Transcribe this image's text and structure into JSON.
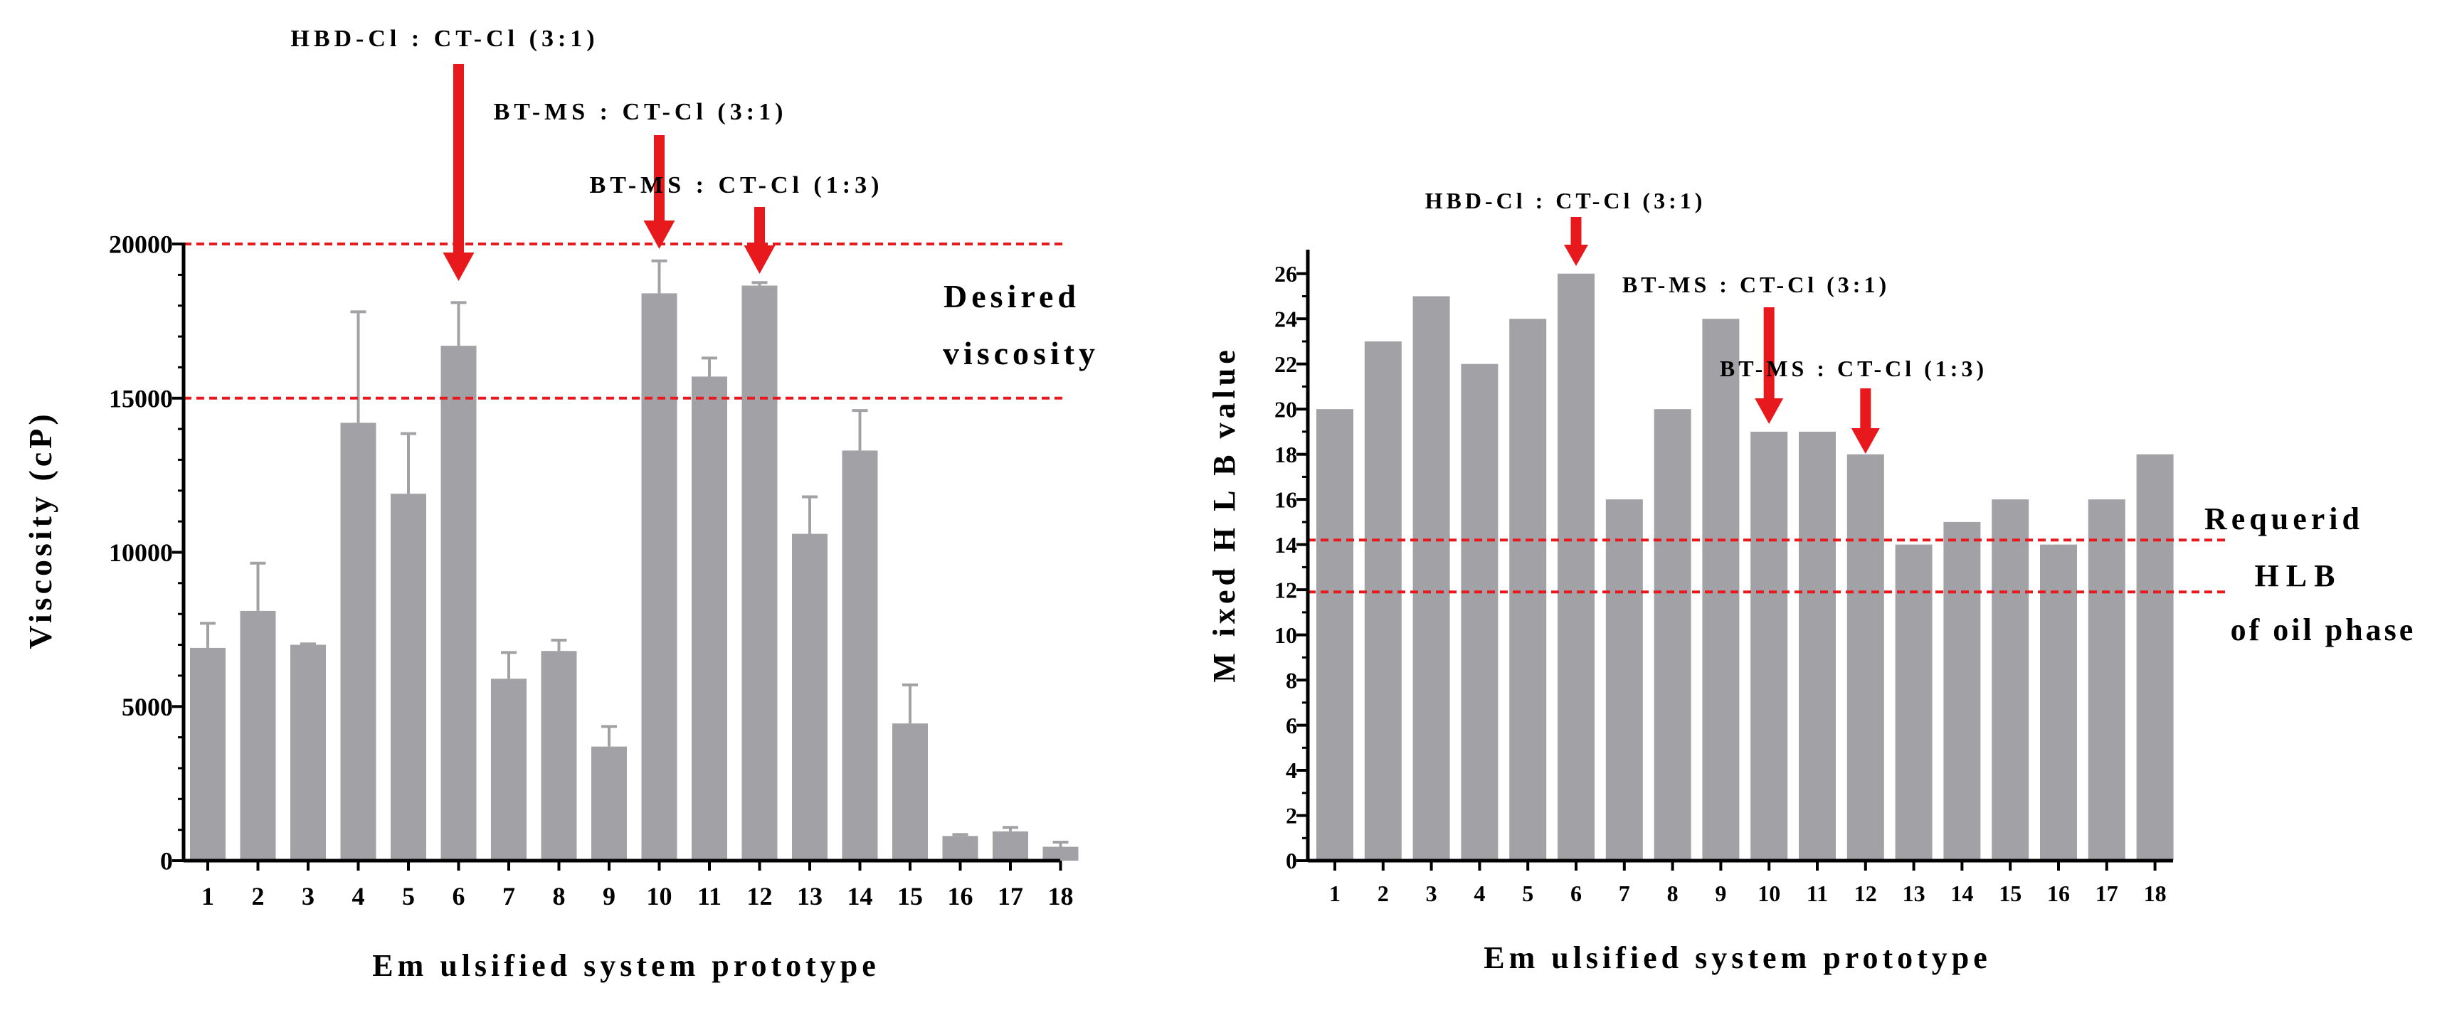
{
  "chart_data": [
    {
      "type": "bar",
      "categories": [
        "1",
        "2",
        "3",
        "4",
        "5",
        "6",
        "7",
        "8",
        "9",
        "10",
        "11",
        "12",
        "13",
        "14",
        "15",
        "16",
        "17",
        "18"
      ],
      "values": [
        6900,
        8100,
        7000,
        14200,
        11900,
        16700,
        5900,
        6800,
        3700,
        18400,
        15700,
        18650,
        10600,
        13300,
        4450,
        800,
        950,
        450
      ],
      "errors": [
        800,
        1550,
        30,
        3600,
        1950,
        1400,
        850,
        350,
        650,
        1050,
        600,
        100,
        1200,
        1300,
        1250,
        50,
        130,
        150
      ],
      "title": "",
      "xlabel": "Em ulsified system prototype",
      "ylabel": "Viscosity (cP)",
      "ylim": [
        0,
        20000
      ],
      "yticks": [
        0,
        5000,
        10000,
        15000,
        20000
      ],
      "ytick_labels": [
        "0",
        "5000",
        "10000",
        "15000",
        "20000"
      ],
      "reference_lines": [
        20000,
        15000
      ],
      "region_label": [
        "Desired",
        "viscosity"
      ],
      "annotations": [
        {
          "text": "HBD-Cl : CT-Cl (3:1)",
          "category": "6"
        },
        {
          "text": "BT-MS : CT-Cl (3:1)",
          "category": "10"
        },
        {
          "text": "BT-MS : CT-Cl (1:3)",
          "category": "12"
        }
      ],
      "colors": {
        "bar": "#a2a2a6",
        "error": "#a2a2a6",
        "reference": "#e8191d",
        "arrow": "#e8191d",
        "axis": "#000000"
      }
    },
    {
      "type": "bar",
      "categories": [
        "1",
        "2",
        "3",
        "4",
        "5",
        "6",
        "7",
        "8",
        "9",
        "10",
        "11",
        "12",
        "13",
        "14",
        "15",
        "16",
        "17",
        "18"
      ],
      "values": [
        20,
        23,
        25,
        22,
        24,
        26,
        16,
        20,
        24,
        19,
        19,
        18,
        14,
        15,
        16,
        14,
        16,
        18
      ],
      "title": "",
      "xlabel": "Em ulsified system prototype",
      "ylabel": "M ixed H L B value",
      "ylim": [
        0,
        27
      ],
      "yticks": [
        0,
        2,
        4,
        6,
        8,
        10,
        12,
        14,
        16,
        18,
        20,
        22,
        24,
        26
      ],
      "ytick_labels": [
        "0",
        "2",
        "4",
        "6",
        "8",
        "10",
        "12",
        "14",
        "16",
        "18",
        "20",
        "22",
        "24",
        "26"
      ],
      "reference_lines": [
        14.2,
        11.9
      ],
      "region_label": [
        "Requerid",
        "HLB",
        "of oil phase"
      ],
      "annotations": [
        {
          "text": "HBD-Cl : CT-Cl (3:1)",
          "category": "6"
        },
        {
          "text": "BT-MS : CT-Cl (3:1)",
          "category": "10"
        },
        {
          "text": "BT-MS : CT-Cl (1:3)",
          "category": "12"
        }
      ],
      "colors": {
        "bar": "#a2a2a6",
        "reference": "#e8191d",
        "arrow": "#e8191d",
        "axis": "#000000"
      }
    }
  ]
}
